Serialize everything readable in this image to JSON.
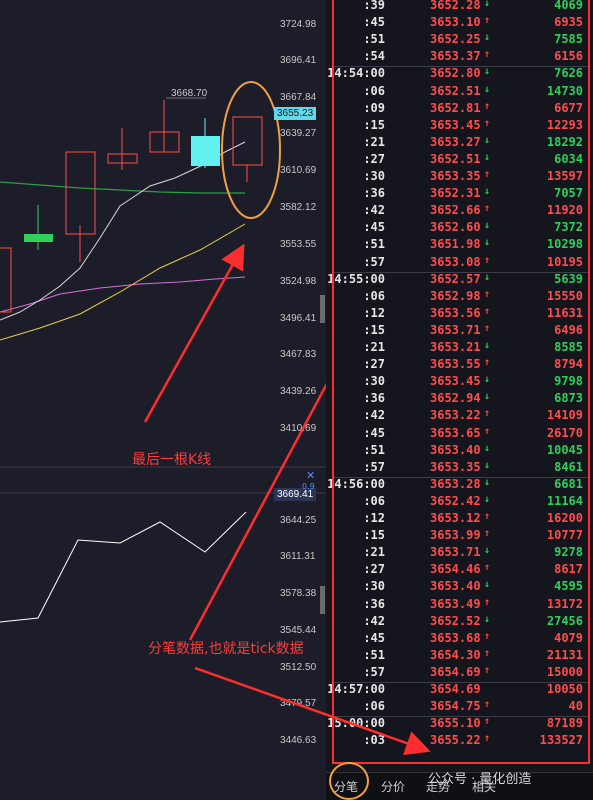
{
  "price_axis": {
    "upper": [
      "3724.98",
      "3696.41",
      "3667.84",
      "3639.27",
      "3610.69",
      "3582.12",
      "3553.55",
      "3524.98",
      "3496.41",
      "3467.83",
      "3439.26",
      "3410.69"
    ],
    "lower": [
      "3644.25",
      "3611.31",
      "3578.38",
      "3545.44",
      "3512.50",
      "3479.57",
      "3446.63"
    ],
    "current_price_tag": "3655.23",
    "lower_price_tag": "3669.41",
    "mini_tag": "0.9"
  },
  "chart": {
    "peak_label": "3668.70",
    "annotation_last_candle": "最后一根K线",
    "annotation_tick_data": "分笔数据,也就是tick数据",
    "close_icon": "close-x-icon",
    "colors": {
      "up": "#ff4d4d",
      "down": "#2fcf5a",
      "flat": "#63f0f0",
      "ma_white": "#d8d8d8",
      "ma_yellow": "#e6d048",
      "ma_green": "#2aa04a",
      "ma_magenta": "#d870d8",
      "annotation": "#ff3b3b",
      "highlight": "#f0a040"
    }
  },
  "ticks": [
    {
      "time": ":39",
      "price": "3652.28",
      "dir": "down",
      "vol": "4069",
      "volc": "down"
    },
    {
      "time": ":45",
      "price": "3653.10",
      "dir": "up",
      "vol": "6935",
      "volc": "up"
    },
    {
      "time": ":51",
      "price": "3652.25",
      "dir": "down",
      "vol": "7585",
      "volc": "down"
    },
    {
      "time": ":54",
      "price": "3653.37",
      "dir": "up",
      "vol": "6156",
      "volc": "up"
    },
    {
      "time": "14:54:00",
      "price": "3652.80",
      "dir": "down",
      "vol": "7626",
      "volc": "down",
      "sep": true
    },
    {
      "time": ":06",
      "price": "3652.51",
      "dir": "down",
      "vol": "14730",
      "volc": "down"
    },
    {
      "time": ":09",
      "price": "3652.81",
      "dir": "up",
      "vol": "6677",
      "volc": "up"
    },
    {
      "time": ":15",
      "price": "3653.45",
      "dir": "up",
      "vol": "12293",
      "volc": "up"
    },
    {
      "time": ":21",
      "price": "3653.27",
      "dir": "down",
      "vol": "18292",
      "volc": "down"
    },
    {
      "time": ":27",
      "price": "3652.51",
      "dir": "down",
      "vol": "6034",
      "volc": "down"
    },
    {
      "time": ":30",
      "price": "3653.35",
      "dir": "up",
      "vol": "13597",
      "volc": "up"
    },
    {
      "time": ":36",
      "price": "3652.31",
      "dir": "down",
      "vol": "7057",
      "volc": "down"
    },
    {
      "time": ":42",
      "price": "3652.66",
      "dir": "up",
      "vol": "11920",
      "volc": "up"
    },
    {
      "time": ":45",
      "price": "3652.60",
      "dir": "down",
      "vol": "7372",
      "volc": "down"
    },
    {
      "time": ":51",
      "price": "3651.98",
      "dir": "down",
      "vol": "10298",
      "volc": "down"
    },
    {
      "time": ":57",
      "price": "3653.08",
      "dir": "up",
      "vol": "10195",
      "volc": "up"
    },
    {
      "time": "14:55:00",
      "price": "3652.57",
      "dir": "down",
      "vol": "5639",
      "volc": "down",
      "sep": true
    },
    {
      "time": ":06",
      "price": "3652.98",
      "dir": "up",
      "vol": "15550",
      "volc": "up"
    },
    {
      "time": ":12",
      "price": "3653.56",
      "dir": "up",
      "vol": "11631",
      "volc": "up"
    },
    {
      "time": ":15",
      "price": "3653.71",
      "dir": "up",
      "vol": "6496",
      "volc": "up"
    },
    {
      "time": ":21",
      "price": "3653.21",
      "dir": "down",
      "vol": "8585",
      "volc": "down"
    },
    {
      "time": ":27",
      "price": "3653.55",
      "dir": "up",
      "vol": "8794",
      "volc": "up"
    },
    {
      "time": ":30",
      "price": "3653.45",
      "dir": "down",
      "vol": "9798",
      "volc": "down"
    },
    {
      "time": ":36",
      "price": "3652.94",
      "dir": "down",
      "vol": "6873",
      "volc": "down"
    },
    {
      "time": ":42",
      "price": "3653.22",
      "dir": "up",
      "vol": "14109",
      "volc": "up"
    },
    {
      "time": ":45",
      "price": "3653.65",
      "dir": "up",
      "vol": "26170",
      "volc": "up"
    },
    {
      "time": ":51",
      "price": "3653.40",
      "dir": "down",
      "vol": "10045",
      "volc": "down"
    },
    {
      "time": ":57",
      "price": "3653.35",
      "dir": "down",
      "vol": "8461",
      "volc": "down"
    },
    {
      "time": "14:56:00",
      "price": "3653.28",
      "dir": "down",
      "vol": "6681",
      "volc": "down",
      "sep": true
    },
    {
      "time": ":06",
      "price": "3652.42",
      "dir": "down",
      "vol": "11164",
      "volc": "down"
    },
    {
      "time": ":12",
      "price": "3653.12",
      "dir": "up",
      "vol": "16200",
      "volc": "up"
    },
    {
      "time": ":15",
      "price": "3653.99",
      "dir": "up",
      "vol": "10777",
      "volc": "up"
    },
    {
      "time": ":21",
      "price": "3653.71",
      "dir": "down",
      "vol": "9278",
      "volc": "down"
    },
    {
      "time": ":27",
      "price": "3654.46",
      "dir": "up",
      "vol": "8617",
      "volc": "up"
    },
    {
      "time": ":30",
      "price": "3653.40",
      "dir": "down",
      "vol": "4595",
      "volc": "down"
    },
    {
      "time": ":36",
      "price": "3653.49",
      "dir": "up",
      "vol": "13172",
      "volc": "up"
    },
    {
      "time": ":42",
      "price": "3652.52",
      "dir": "down",
      "vol": "27456",
      "volc": "down"
    },
    {
      "time": ":45",
      "price": "3653.68",
      "dir": "up",
      "vol": "4079",
      "volc": "up"
    },
    {
      "time": ":51",
      "price": "3654.30",
      "dir": "up",
      "vol": "21131",
      "volc": "up"
    },
    {
      "time": ":57",
      "price": "3654.69",
      "dir": "up",
      "vol": "15000",
      "volc": "up"
    },
    {
      "time": "14:57:00",
      "price": "3654.69",
      "dir": "none",
      "vol": "10050",
      "volc": "up",
      "sep": true
    },
    {
      "time": ":06",
      "price": "3654.75",
      "dir": "up",
      "vol": "40",
      "volc": "up"
    },
    {
      "time": "15:00:00",
      "price": "3655.10",
      "dir": "up",
      "vol": "87189",
      "volc": "up",
      "sep": true
    },
    {
      "time": ":03",
      "price": "3655.22",
      "dir": "up",
      "vol": "133527",
      "volc": "up"
    }
  ],
  "tabs": [
    "分笔",
    "分价",
    "走势",
    "相关"
  ],
  "watermark": "公众号 · 量化创造"
}
